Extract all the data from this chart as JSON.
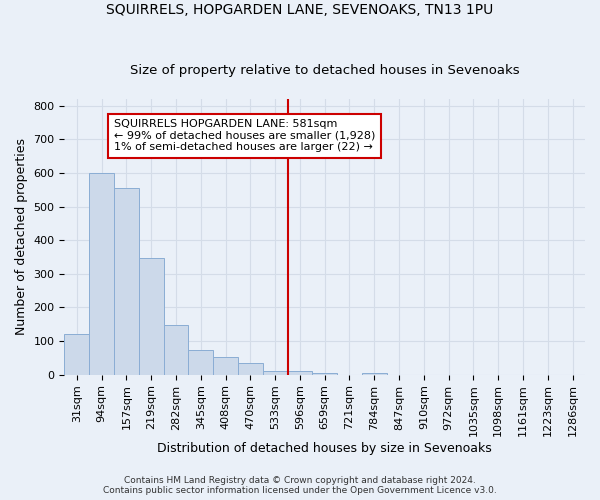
{
  "title": "SQUIRRELS, HOPGARDEN LANE, SEVENOAKS, TN13 1PU",
  "subtitle": "Size of property relative to detached houses in Sevenoaks",
  "xlabel": "Distribution of detached houses by size in Sevenoaks",
  "ylabel": "Number of detached properties",
  "footer1": "Contains HM Land Registry data © Crown copyright and database right 2024.",
  "footer2": "Contains public sector information licensed under the Open Government Licence v3.0.",
  "categories": [
    "31sqm",
    "94sqm",
    "157sqm",
    "219sqm",
    "282sqm",
    "345sqm",
    "408sqm",
    "470sqm",
    "533sqm",
    "596sqm",
    "659sqm",
    "721sqm",
    "784sqm",
    "847sqm",
    "910sqm",
    "972sqm",
    "1035sqm",
    "1098sqm",
    "1161sqm",
    "1223sqm",
    "1286sqm"
  ],
  "values": [
    120,
    600,
    555,
    348,
    148,
    75,
    52,
    35,
    10,
    10,
    5,
    0,
    5,
    0,
    0,
    0,
    0,
    0,
    0,
    0,
    0
  ],
  "bar_color": "#ccd9ea",
  "bar_edge_color": "#8aadd4",
  "vline_position": 9,
  "vline_color": "#cc0000",
  "annotation_line1": "SQUIRRELS HOPGARDEN LANE: 581sqm",
  "annotation_line2": "← 99% of detached houses are smaller (1,928)",
  "annotation_line3": "1% of semi-detached houses are larger (22) →",
  "annotation_box_color": "#cc0000",
  "annotation_bg_color": "#ffffff",
  "ylim": [
    0,
    820
  ],
  "yticks": [
    0,
    100,
    200,
    300,
    400,
    500,
    600,
    700,
    800
  ],
  "grid_color": "#d4dce8",
  "plot_bg_color": "#eaf0f8",
  "fig_bg_color": "#eaf0f8",
  "title_fontsize": 10,
  "subtitle_fontsize": 9.5,
  "axis_label_fontsize": 9,
  "tick_fontsize": 8,
  "annotation_fontsize": 8
}
